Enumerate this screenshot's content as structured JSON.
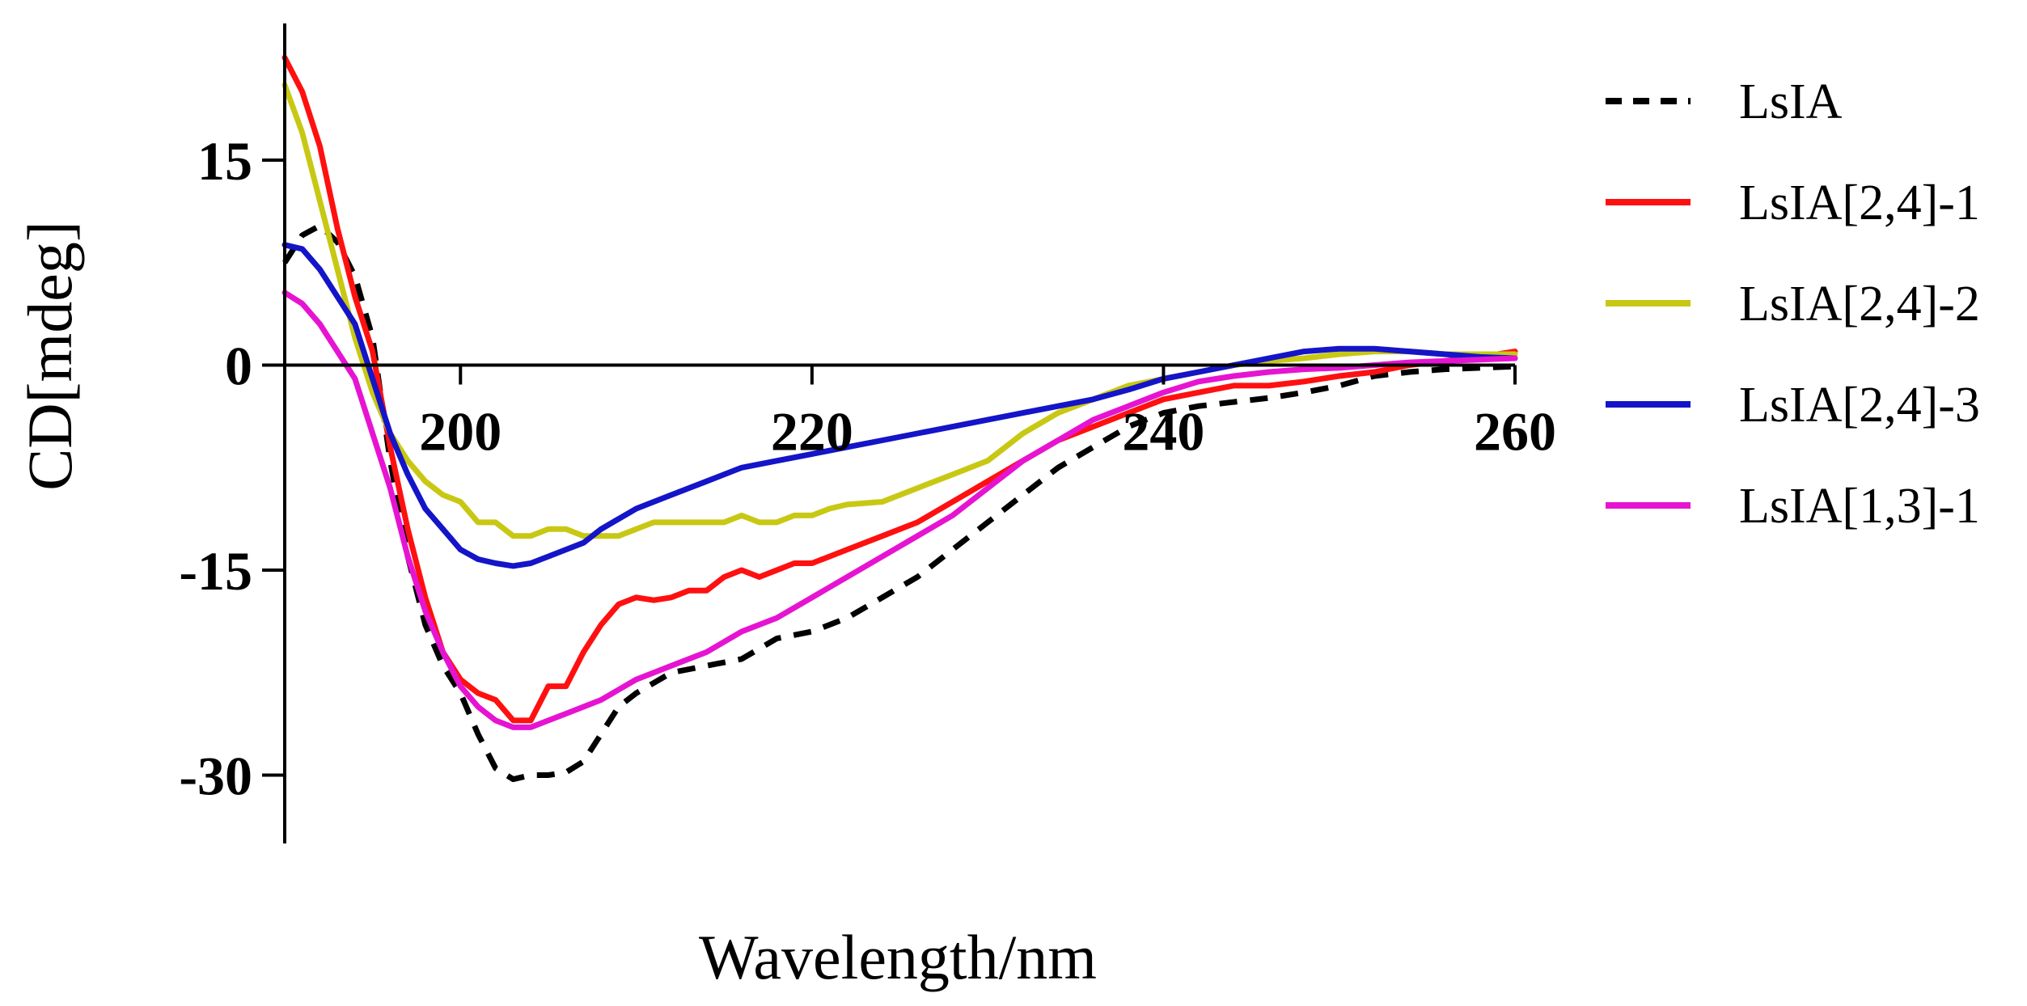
{
  "chart_data": {
    "type": "line",
    "title": "",
    "xlabel": "Wavelength/nm",
    "ylabel": "CD[mdeg]",
    "xlim": [
      190,
      260
    ],
    "ylim": [
      -35,
      25
    ],
    "xticks": [
      {
        "value": 200,
        "label": "200"
      },
      {
        "value": 220,
        "label": "220"
      },
      {
        "value": 240,
        "label": "240"
      },
      {
        "value": 260,
        "label": "260"
      }
    ],
    "yticks": [
      {
        "value": 15,
        "label": "15"
      },
      {
        "value": 0,
        "label": "0"
      },
      {
        "value": -15,
        "label": "-15"
      },
      {
        "value": -30,
        "label": "-30"
      }
    ],
    "grid": false,
    "legend_position": "right",
    "series": [
      {
        "name": "LsIA",
        "color": "#000000",
        "dashed": true,
        "x": [
          190,
          191,
          192,
          193,
          194,
          195,
          196,
          197,
          198,
          199,
          200,
          201,
          202,
          203,
          204,
          205,
          206,
          207,
          208,
          209,
          210,
          212,
          214,
          216,
          218,
          220,
          222,
          224,
          226,
          228,
          230,
          232,
          234,
          236,
          238,
          240,
          242,
          244,
          246,
          248,
          250,
          252,
          254,
          256,
          258,
          260
        ],
        "values": [
          7.5,
          9.5,
          10.2,
          9,
          6.5,
          2,
          -7,
          -14,
          -19,
          -22,
          -24,
          -27,
          -29.5,
          -30.3,
          -30,
          -30,
          -29.8,
          -29,
          -27,
          -25,
          -24,
          -22.5,
          -22,
          -21.5,
          -20,
          -19.5,
          -18.5,
          -17,
          -15.5,
          -13.5,
          -11.5,
          -9.5,
          -7.5,
          -6,
          -4.5,
          -3.5,
          -3,
          -2.7,
          -2.4,
          -2,
          -1.5,
          -0.8,
          -0.5,
          -0.3,
          -0.2,
          -0.1
        ]
      },
      {
        "name": "LsIA[2,4]-1",
        "color": "#ff1010",
        "dashed": false,
        "x": [
          190,
          191,
          192,
          193,
          194,
          195,
          196,
          197,
          198,
          199,
          200,
          201,
          202,
          203,
          204,
          205,
          206,
          207,
          208,
          209,
          210,
          211,
          212,
          213,
          214,
          215,
          216,
          217,
          218,
          219,
          220,
          221,
          222,
          224,
          226,
          228,
          230,
          232,
          234,
          236,
          238,
          240,
          242,
          244,
          246,
          248,
          250,
          252,
          254,
          256,
          258,
          260
        ],
        "values": [
          22.5,
          20,
          16,
          10,
          5,
          1,
          -6,
          -12,
          -17,
          -21,
          -23,
          -24,
          -24.5,
          -26,
          -26,
          -23.5,
          -23.5,
          -21,
          -19,
          -17.5,
          -17,
          -17.2,
          -17,
          -16.5,
          -16.5,
          -15.5,
          -15,
          -15.5,
          -15,
          -14.5,
          -14.5,
          -14,
          -13.5,
          -12.5,
          -11.5,
          -10,
          -8.5,
          -7,
          -5.5,
          -4.5,
          -3.5,
          -2.5,
          -2,
          -1.5,
          -1.5,
          -1.2,
          -0.8,
          -0.5,
          0,
          0.3,
          0.6,
          1
        ]
      },
      {
        "name": "LsIA[2,4]-2",
        "color": "#c8c814",
        "dashed": false,
        "x": [
          190,
          191,
          192,
          193,
          194,
          195,
          196,
          197,
          198,
          199,
          200,
          201,
          202,
          203,
          204,
          205,
          206,
          207,
          208,
          209,
          210,
          211,
          212,
          213,
          214,
          215,
          216,
          217,
          218,
          219,
          220,
          221,
          222,
          224,
          226,
          228,
          230,
          232,
          234,
          236,
          238,
          240,
          242,
          244,
          246,
          248,
          250,
          252,
          254,
          256,
          258,
          260
        ],
        "values": [
          20.5,
          17,
          12,
          7,
          2,
          -2,
          -5,
          -7,
          -8.5,
          -9.5,
          -10,
          -11.5,
          -11.5,
          -12.5,
          -12.5,
          -12,
          -12,
          -12.5,
          -12.5,
          -12.5,
          -12,
          -11.5,
          -11.5,
          -11.5,
          -11.5,
          -11.5,
          -11,
          -11.5,
          -11.5,
          -11,
          -11,
          -10.5,
          -10.2,
          -10,
          -9,
          -8,
          -7,
          -5,
          -3.5,
          -2.5,
          -1.5,
          -1,
          -0.5,
          0,
          0.3,
          0.5,
          0.8,
          1,
          1,
          0.8,
          0.8,
          0.8
        ]
      },
      {
        "name": "LsIA[2,4]-3",
        "color": "#1414c8",
        "dashed": false,
        "x": [
          190,
          191,
          192,
          193,
          194,
          195,
          196,
          197,
          198,
          199,
          200,
          201,
          202,
          203,
          204,
          205,
          206,
          207,
          208,
          210,
          212,
          214,
          216,
          218,
          220,
          222,
          224,
          226,
          228,
          230,
          232,
          234,
          236,
          238,
          240,
          242,
          244,
          246,
          248,
          250,
          252,
          254,
          256,
          258,
          260
        ],
        "values": [
          8.8,
          8.5,
          7,
          5,
          3,
          -1,
          -5,
          -8,
          -10.5,
          -12,
          -13.5,
          -14.2,
          -14.5,
          -14.7,
          -14.5,
          -14,
          -13.5,
          -13,
          -12,
          -10.5,
          -9.5,
          -8.5,
          -7.5,
          -7,
          -6.5,
          -6,
          -5.5,
          -5,
          -4.5,
          -4,
          -3.5,
          -3,
          -2.5,
          -1.8,
          -1,
          -0.5,
          0,
          0.5,
          1,
          1.2,
          1.2,
          1,
          0.8,
          0.6,
          0.5
        ]
      },
      {
        "name": "LsIA[1,3]-1",
        "color": "#e614d2",
        "dashed": false,
        "x": [
          190,
          191,
          192,
          193,
          194,
          195,
          196,
          197,
          198,
          199,
          200,
          201,
          202,
          203,
          204,
          205,
          206,
          207,
          208,
          210,
          212,
          214,
          216,
          218,
          220,
          222,
          224,
          226,
          228,
          230,
          232,
          234,
          236,
          238,
          240,
          242,
          244,
          246,
          248,
          250,
          252,
          254,
          256,
          258,
          260
        ],
        "values": [
          5.3,
          4.5,
          3,
          1,
          -1,
          -5,
          -9,
          -14,
          -18,
          -21,
          -23.5,
          -25,
          -26,
          -26.5,
          -26.5,
          -26,
          -25.5,
          -25,
          -24.5,
          -23,
          -22,
          -21,
          -19.5,
          -18.5,
          -17,
          -15.5,
          -14,
          -12.5,
          -11,
          -9,
          -7,
          -5.5,
          -4,
          -3,
          -2,
          -1.2,
          -0.8,
          -0.5,
          -0.3,
          -0.2,
          0,
          0.2,
          0.3,
          0.4,
          0.5
        ]
      }
    ]
  }
}
